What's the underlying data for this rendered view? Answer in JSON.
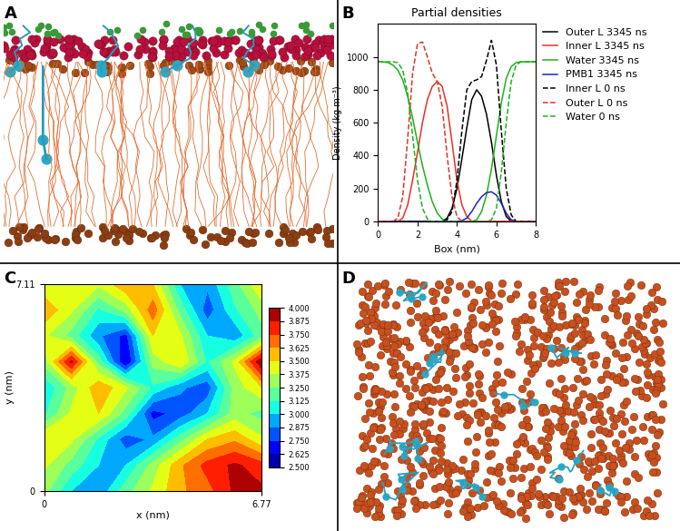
{
  "chart_data": [
    {
      "type": "image",
      "annotation": "A"
    },
    {
      "type": "line",
      "annotation": "B",
      "title": "Partial densities",
      "x_label": "Box (nm)",
      "y_label": "Density (kg m⁻³)",
      "xlim": [
        0,
        8
      ],
      "xticks": [
        0,
        2,
        4,
        6,
        8
      ],
      "ylim": [
        0,
        1200
      ],
      "yticks": [
        0,
        200,
        400,
        600,
        800,
        1000
      ],
      "legend": "upper left",
      "x": [
        0,
        0.25,
        0.5,
        0.75,
        1,
        1.25,
        1.5,
        1.75,
        2,
        2.25,
        2.5,
        2.75,
        3,
        3.25,
        3.5,
        3.75,
        4,
        4.25,
        4.5,
        4.75,
        5,
        5.25,
        5.5,
        5.75,
        6,
        6.25,
        6.5,
        6.75,
        7,
        7.25,
        7.5,
        7.75,
        8
      ],
      "series": [
        {
          "name": "Outer L 3345 ns",
          "color": "#000000",
          "line_style": "solid",
          "values": [
            0,
            0,
            0,
            0,
            0,
            0,
            0,
            0,
            0,
            0,
            0,
            0,
            0,
            0,
            20,
            80,
            200,
            380,
            570,
            740,
            800,
            760,
            650,
            480,
            280,
            120,
            30,
            0,
            0,
            0,
            0,
            0,
            0
          ]
        },
        {
          "name": "Inner L 3345 ns",
          "color": "#e8302a",
          "line_style": "solid",
          "values": [
            0,
            0,
            0,
            0,
            0,
            20,
            100,
            250,
            420,
            600,
            740,
            820,
            850,
            820,
            700,
            480,
            250,
            100,
            30,
            0,
            0,
            0,
            0,
            0,
            0,
            0,
            0,
            0,
            0,
            0,
            0,
            0,
            0
          ]
        },
        {
          "name": "Water 3345 ns",
          "color": "#1fb01f",
          "line_style": "solid",
          "values": [
            970,
            970,
            965,
            950,
            920,
            860,
            760,
            630,
            480,
            340,
            220,
            120,
            50,
            15,
            0,
            0,
            0,
            0,
            0,
            0,
            10,
            60,
            160,
            320,
            520,
            720,
            870,
            940,
            965,
            970,
            970,
            970,
            970
          ]
        },
        {
          "name": "PMB1 3345 ns",
          "color": "#2020c8",
          "line_style": "solid",
          "values": [
            0,
            0,
            0,
            0,
            0,
            0,
            0,
            0,
            0,
            0,
            0,
            0,
            0,
            0,
            0,
            0,
            0,
            5,
            20,
            60,
            110,
            150,
            175,
            180,
            160,
            110,
            50,
            10,
            0,
            0,
            0,
            0,
            0
          ]
        },
        {
          "name": "Inner L 0 ns",
          "color": "#000000",
          "line_style": "dashed",
          "values": [
            0,
            0,
            0,
            0,
            0,
            0,
            0,
            0,
            0,
            0,
            0,
            0,
            0,
            0,
            10,
            60,
            250,
            550,
            800,
            850,
            860,
            880,
            980,
            1100,
            950,
            550,
            200,
            40,
            0,
            0,
            0,
            0,
            0
          ]
        },
        {
          "name": "Outer L 0 ns",
          "color": "#e8302a",
          "line_style": "dashed",
          "values": [
            0,
            0,
            0,
            0,
            20,
            150,
            500,
            900,
            1080,
            1090,
            1000,
            900,
            850,
            700,
            400,
            150,
            30,
            0,
            0,
            0,
            0,
            0,
            0,
            0,
            0,
            0,
            0,
            0,
            0,
            0,
            0,
            0,
            0
          ]
        },
        {
          "name": "Water 0 ns",
          "color": "#1fb01f",
          "line_style": "dashed",
          "values": [
            970,
            970,
            970,
            970,
            965,
            920,
            780,
            520,
            250,
            80,
            15,
            0,
            0,
            0,
            0,
            0,
            0,
            0,
            0,
            0,
            0,
            0,
            0,
            10,
            80,
            300,
            600,
            850,
            950,
            970,
            970,
            970,
            970
          ]
        }
      ]
    },
    {
      "type": "contour",
      "annotation": "C",
      "x_label": "x (nm)",
      "y_label": "y (nm)",
      "xlim": [
        0,
        6.77
      ],
      "xticks": [
        0,
        6.77
      ],
      "ylim": [
        0,
        7.11
      ],
      "yticks": [
        0,
        7.11
      ],
      "x": [
        0,
        0.846,
        1.693,
        2.539,
        3.385,
        4.231,
        5.078,
        5.924,
        6.77
      ],
      "y": [
        0,
        0.889,
        1.778,
        2.666,
        3.555,
        4.444,
        5.333,
        6.221,
        7.11
      ],
      "cells": [
        [
          3.3,
          3.0,
          2.9,
          3.2,
          3.4,
          3.6,
          3.7,
          3.9,
          3.9
        ],
        [
          3.4,
          3.2,
          3.0,
          3.0,
          3.3,
          3.6,
          3.8,
          3.9,
          3.8
        ],
        [
          3.5,
          3.4,
          3.1,
          2.8,
          2.9,
          3.2,
          3.5,
          3.6,
          3.4
        ],
        [
          3.1,
          3.4,
          3.5,
          3.2,
          2.7,
          2.8,
          3.0,
          3.3,
          3.2
        ],
        [
          3.0,
          3.3,
          3.6,
          3.4,
          3.1,
          2.9,
          2.8,
          3.3,
          3.5
        ],
        [
          3.3,
          3.9,
          3.2,
          2.6,
          3.3,
          3.5,
          3.1,
          3.4,
          4.0
        ],
        [
          3.4,
          3.2,
          2.9,
          2.7,
          3.5,
          3.4,
          3.0,
          2.9,
          3.2
        ],
        [
          3.6,
          3.4,
          3.1,
          3.3,
          3.7,
          3.2,
          2.8,
          3.1,
          3.3
        ],
        [
          3.4,
          3.5,
          3.4,
          3.6,
          3.5,
          3.0,
          2.9,
          3.2,
          3.5
        ]
      ],
      "colorbar_range": [
        2.5,
        4.0
      ],
      "colorbar_ticks": [
        {
          "value": 2.5,
          "label": "2.500"
        },
        {
          "value": 2.625,
          "label": "2.625"
        },
        {
          "value": 2.75,
          "label": "2.750"
        },
        {
          "value": 2.875,
          "label": "2.875"
        },
        {
          "value": 3.0,
          "label": "3.000"
        },
        {
          "value": 3.125,
          "label": "3.125"
        },
        {
          "value": 3.25,
          "label": "3.250"
        },
        {
          "value": 3.375,
          "label": "3.375"
        },
        {
          "value": 3.5,
          "label": "3.500"
        },
        {
          "value": 3.625,
          "label": "3.625"
        },
        {
          "value": 3.75,
          "label": "3.750"
        },
        {
          "value": 3.875,
          "label": "3.875"
        },
        {
          "value": 4.0,
          "label": "4.000"
        }
      ]
    },
    {
      "type": "image",
      "annotation": "D"
    }
  ]
}
